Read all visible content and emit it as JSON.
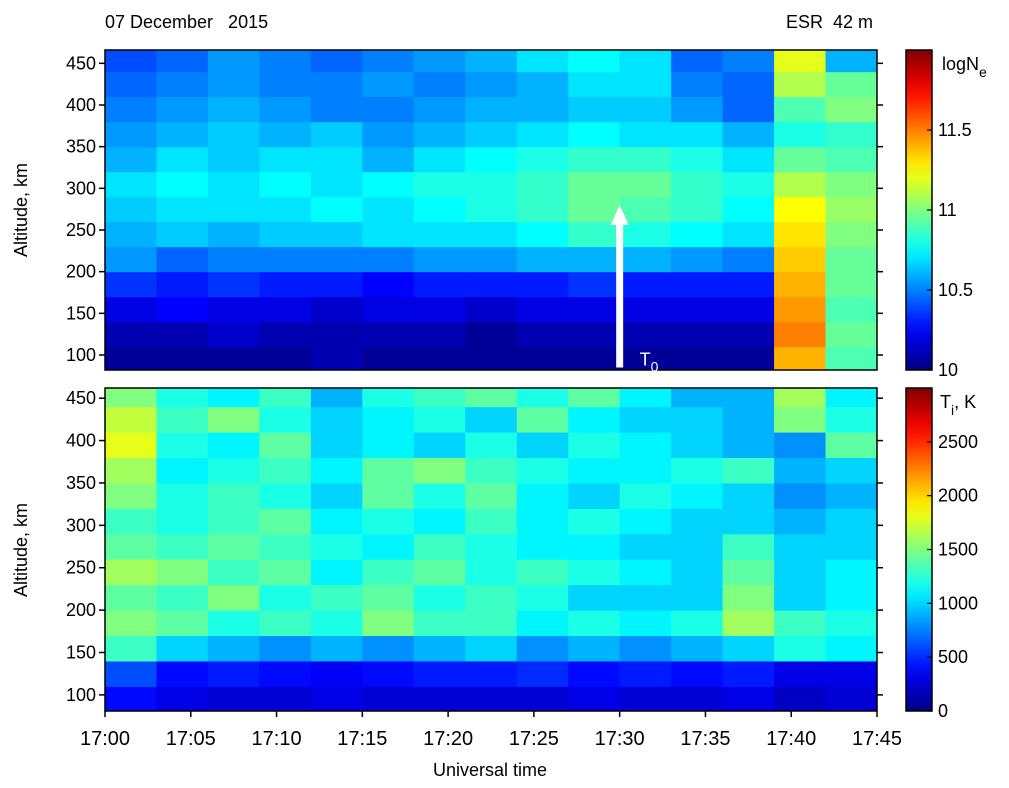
{
  "chart_data": [
    {
      "type": "heatmap",
      "title": "07 December   2015",
      "annotation": "ESR  42 m",
      "ylabel": "Altitude, km",
      "colorbar_label": "logN",
      "colorbar_label_sub": "e",
      "marker": {
        "x": 30,
        "y": [
          85,
          280
        ],
        "text": "T",
        "sub": "0"
      },
      "xlim": [
        0,
        45
      ],
      "ylim": [
        82,
        466
      ],
      "clim": [
        10,
        12
      ],
      "xbins": [
        0,
        3,
        6,
        9,
        12,
        15,
        18,
        21,
        24,
        27,
        30,
        33,
        36,
        39,
        42,
        45
      ],
      "ybins": [
        80,
        110,
        140,
        170,
        200,
        230,
        260,
        290,
        320,
        350,
        380,
        410,
        440,
        470
      ],
      "yticks": [
        100,
        150,
        200,
        250,
        300,
        350,
        400,
        450
      ],
      "cticks": [
        10,
        10.5,
        11,
        11.5
      ],
      "z": [
        [
          10.05,
          10.05,
          10.05,
          10.05,
          10.1,
          10.05,
          10.05,
          10.05,
          10.05,
          10.05,
          10.05,
          10.05,
          10.05,
          11.4,
          10.9
        ],
        [
          10.1,
          10.1,
          10.15,
          10.1,
          10.1,
          10.1,
          10.1,
          10.05,
          10.1,
          10.1,
          10.1,
          10.1,
          10.1,
          11.5,
          10.95
        ],
        [
          10.2,
          10.25,
          10.2,
          10.2,
          10.15,
          10.2,
          10.2,
          10.15,
          10.2,
          10.2,
          10.2,
          10.2,
          10.2,
          11.45,
          10.9
        ],
        [
          10.35,
          10.3,
          10.35,
          10.3,
          10.3,
          10.25,
          10.3,
          10.3,
          10.3,
          10.35,
          10.3,
          10.3,
          10.3,
          11.4,
          10.95
        ],
        [
          10.55,
          10.45,
          10.5,
          10.5,
          10.5,
          10.5,
          10.55,
          10.55,
          10.6,
          10.6,
          10.6,
          10.55,
          10.5,
          11.35,
          10.95
        ],
        [
          10.6,
          10.65,
          10.6,
          10.65,
          10.65,
          10.7,
          10.7,
          10.7,
          10.75,
          10.85,
          10.8,
          10.75,
          10.7,
          11.3,
          11.0
        ],
        [
          10.65,
          10.7,
          10.7,
          10.7,
          10.75,
          10.7,
          10.75,
          10.8,
          10.85,
          10.95,
          10.9,
          10.85,
          10.75,
          11.25,
          11.05
        ],
        [
          10.7,
          10.75,
          10.7,
          10.75,
          10.7,
          10.75,
          10.8,
          10.8,
          10.85,
          10.95,
          10.95,
          10.85,
          10.8,
          11.1,
          11.0
        ],
        [
          10.6,
          10.7,
          10.65,
          10.7,
          10.7,
          10.6,
          10.7,
          10.75,
          10.8,
          10.85,
          10.85,
          10.8,
          10.7,
          10.95,
          10.9
        ],
        [
          10.55,
          10.6,
          10.65,
          10.6,
          10.65,
          10.55,
          10.6,
          10.65,
          10.7,
          10.75,
          10.7,
          10.7,
          10.6,
          10.8,
          10.85
        ],
        [
          10.5,
          10.55,
          10.6,
          10.55,
          10.5,
          10.5,
          10.55,
          10.6,
          10.6,
          10.65,
          10.65,
          10.55,
          10.45,
          10.9,
          11.0
        ],
        [
          10.45,
          10.5,
          10.55,
          10.5,
          10.5,
          10.55,
          10.5,
          10.55,
          10.6,
          10.7,
          10.7,
          10.5,
          10.45,
          11.1,
          10.95
        ],
        [
          10.4,
          10.45,
          10.55,
          10.5,
          10.45,
          10.5,
          10.55,
          10.6,
          10.7,
          10.75,
          10.7,
          10.45,
          10.5,
          11.2,
          10.6
        ]
      ]
    },
    {
      "type": "heatmap",
      "ylabel": "Altitude, km",
      "xlabel": "Universal time",
      "colorbar_label": "T",
      "colorbar_label_sub": "i",
      "colorbar_label_tail": ", K",
      "xlim": [
        0,
        45
      ],
      "ylim": [
        81,
        462
      ],
      "clim": [
        0,
        3000
      ],
      "xbins": [
        0,
        3,
        6,
        9,
        12,
        15,
        18,
        21,
        24,
        27,
        30,
        33,
        36,
        39,
        42,
        45
      ],
      "ybins": [
        80,
        110,
        140,
        170,
        200,
        230,
        260,
        290,
        320,
        350,
        380,
        410,
        440,
        470
      ],
      "yticks": [
        100,
        150,
        200,
        250,
        300,
        350,
        400,
        450
      ],
      "xticks": [
        {
          "value": 0,
          "label": "17:00"
        },
        {
          "value": 5,
          "label": "17:05"
        },
        {
          "value": 10,
          "label": "17:10"
        },
        {
          "value": 15,
          "label": "17:15"
        },
        {
          "value": 20,
          "label": "17:20"
        },
        {
          "value": 25,
          "label": "17:25"
        },
        {
          "value": 30,
          "label": "17:30"
        },
        {
          "value": 35,
          "label": "17:35"
        },
        {
          "value": 40,
          "label": "17:40"
        },
        {
          "value": 45,
          "label": "17:45"
        }
      ],
      "cticks": [
        0,
        500,
        1000,
        1500,
        2000,
        2500
      ],
      "z": [
        [
          400,
          300,
          250,
          250,
          300,
          250,
          250,
          250,
          250,
          300,
          250,
          250,
          300,
          200,
          250
        ],
        [
          600,
          400,
          450,
          400,
          350,
          400,
          450,
          450,
          500,
          400,
          450,
          400,
          450,
          300,
          300
        ],
        [
          1300,
          1000,
          900,
          800,
          900,
          800,
          900,
          1000,
          800,
          900,
          800,
          900,
          1000,
          1200,
          1100
        ],
        [
          1500,
          1400,
          1200,
          1300,
          1200,
          1500,
          1300,
          1300,
          1100,
          1200,
          1100,
          1200,
          1600,
          1300,
          1200
        ],
        [
          1400,
          1300,
          1500,
          1200,
          1300,
          1400,
          1200,
          1300,
          1200,
          1000,
          1000,
          1000,
          1500,
          1000,
          1100
        ],
        [
          1600,
          1500,
          1300,
          1400,
          1100,
          1300,
          1400,
          1200,
          1300,
          1200,
          1100,
          1000,
          1400,
          1000,
          1100
        ],
        [
          1400,
          1300,
          1400,
          1300,
          1200,
          1100,
          1300,
          1200,
          1100,
          1100,
          1000,
          1000,
          1300,
          1000,
          1000
        ],
        [
          1300,
          1200,
          1300,
          1400,
          1100,
          1200,
          1100,
          1300,
          1100,
          1200,
          1100,
          1000,
          1000,
          900,
          1000
        ],
        [
          1500,
          1200,
          1300,
          1200,
          1000,
          1400,
          1200,
          1400,
          1100,
          1000,
          1200,
          1100,
          1000,
          800,
          900
        ],
        [
          1600,
          1100,
          1200,
          1300,
          1100,
          1400,
          1500,
          1300,
          1200,
          1100,
          1100,
          1200,
          1300,
          900,
          1000
        ],
        [
          1800,
          1200,
          1100,
          1400,
          1000,
          1100,
          1000,
          1200,
          1000,
          1200,
          1100,
          1000,
          900,
          800,
          1400
        ],
        [
          1700,
          1300,
          1500,
          1200,
          1000,
          1100,
          1200,
          1000,
          1400,
          1100,
          1000,
          1000,
          900,
          1500,
          1200
        ],
        [
          1500,
          1200,
          1100,
          1300,
          900,
          1200,
          1300,
          1400,
          1200,
          1400,
          1100,
          900,
          900,
          1600,
          1100
        ]
      ]
    }
  ]
}
